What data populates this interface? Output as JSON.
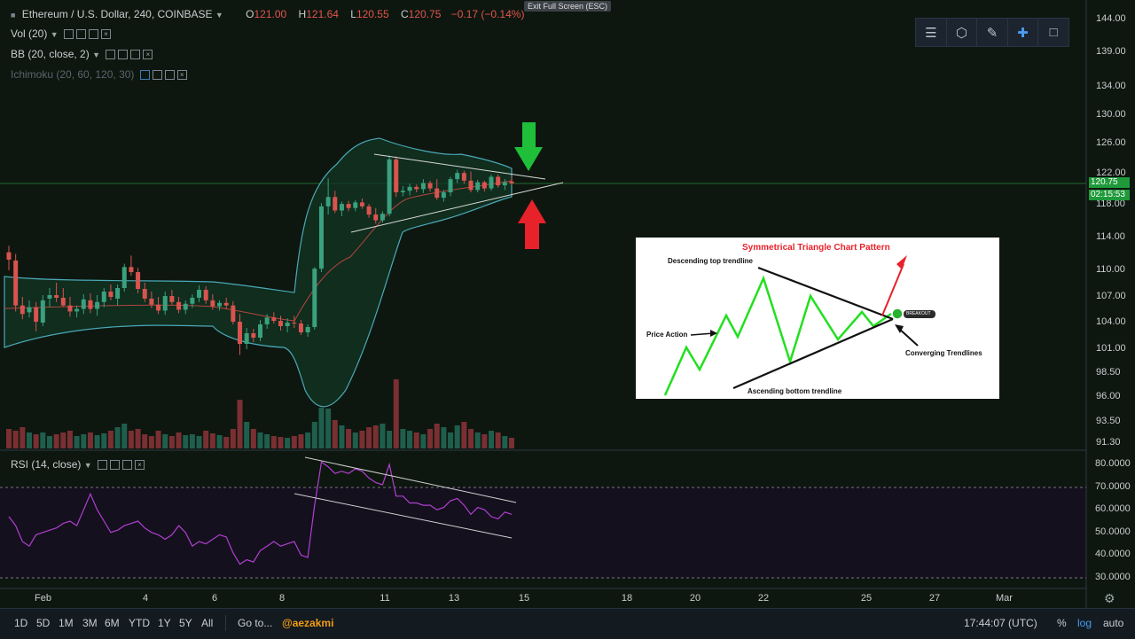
{
  "header": {
    "symbol": "Ethereum / U.S. Dollar, 240, COINBASE",
    "open_label": "O",
    "open": "121.00",
    "high_label": "H",
    "high": "121.64",
    "low_label": "L",
    "low": "120.55",
    "close_label": "C",
    "close": "120.75",
    "change": "−0.17 (−0.14%)",
    "exit_fullscreen": "Exit Full Screen (ESC)"
  },
  "indicators": {
    "vol": "Vol (20)",
    "bb": "BB (20, close, 2)",
    "ichimoku": "Ichimoku (20, 60, 120, 30)",
    "rsi": "RSI (14, close)"
  },
  "price_axis": [
    "144.00",
    "139.00",
    "134.00",
    "130.00",
    "126.00",
    "122.00",
    "118.00",
    "114.00",
    "110.00",
    "107.00",
    "104.00",
    "101.00",
    "98.50",
    "96.00",
    "93.50",
    "91.30"
  ],
  "price_tags": {
    "last": "120.75",
    "countdown": "02:15:53"
  },
  "rsi_axis": [
    "80.0000",
    "70.0000",
    "60.0000",
    "50.0000",
    "40.0000",
    "30.0000"
  ],
  "time_axis": [
    "Feb",
    "4",
    "6",
    "8",
    "11",
    "13",
    "15",
    "18",
    "20",
    "22",
    "25",
    "27",
    "Mar"
  ],
  "bottom": {
    "ranges": [
      "1D",
      "5D",
      "1M",
      "3M",
      "6M",
      "YTD",
      "1Y",
      "5Y",
      "All"
    ],
    "goto": "Go to...",
    "watermark": "@aezakmi",
    "clock": "17:44:07 (UTC)",
    "percent": "%",
    "log": "log",
    "auto": "auto"
  },
  "inset": {
    "title": "Symmetrical Triangle Chart Pattern",
    "top_trend": "Descending top trendline",
    "price_action": "Price Action",
    "bottom_trend": "Ascending bottom trendline",
    "converging": "Converging Trendlines",
    "breakout": "BREAKOUT"
  },
  "colors": {
    "bull": "#3aa07e",
    "bear": "#d9534f",
    "rsi": "#b13fd0",
    "bb": "#4aa9b8",
    "up_arrow": "#1fbf3a",
    "down_arrow": "#e8222a"
  },
  "chart_data": {
    "type": "candlestick",
    "candles": [
      [
        112.2,
        113.0,
        110.0,
        111.3
      ],
      [
        111.2,
        112.0,
        105.3,
        106.0
      ],
      [
        106.0,
        107.0,
        104.4,
        105.0
      ],
      [
        105.2,
        106.6,
        104.6,
        105.8
      ],
      [
        105.8,
        106.4,
        103.0,
        104.1
      ],
      [
        104.0,
        107.2,
        103.6,
        106.6
      ],
      [
        106.8,
        108.0,
        105.8,
        107.2
      ],
      [
        107.2,
        108.6,
        106.4,
        106.9
      ],
      [
        106.9,
        108.0,
        105.9,
        106.0
      ],
      [
        106.0,
        107.0,
        104.7,
        105.3
      ],
      [
        105.3,
        106.0,
        104.6,
        105.6
      ],
      [
        105.6,
        107.3,
        105.0,
        106.7
      ],
      [
        106.6,
        107.4,
        105.1,
        105.6
      ],
      [
        105.6,
        107.2,
        104.8,
        106.4
      ],
      [
        106.4,
        108.0,
        105.8,
        107.6
      ],
      [
        107.6,
        108.4,
        106.6,
        107.0
      ],
      [
        106.8,
        108.4,
        106.0,
        108.0
      ],
      [
        108.0,
        110.8,
        107.6,
        110.4
      ],
      [
        110.4,
        111.8,
        109.4,
        109.8
      ],
      [
        109.8,
        110.3,
        107.4,
        107.9
      ],
      [
        107.9,
        108.6,
        106.4,
        106.8
      ],
      [
        106.8,
        107.6,
        105.7,
        106.1
      ],
      [
        106.1,
        107.0,
        105.0,
        105.4
      ],
      [
        105.4,
        107.6,
        104.9,
        107.1
      ],
      [
        107.1,
        107.8,
        106.1,
        106.4
      ],
      [
        106.4,
        107.0,
        105.1,
        105.5
      ],
      [
        105.5,
        106.6,
        105.0,
        106.2
      ],
      [
        106.2,
        107.3,
        105.7,
        106.9
      ],
      [
        106.9,
        108.3,
        106.4,
        107.8
      ],
      [
        107.8,
        108.2,
        106.2,
        106.6
      ],
      [
        106.6,
        107.3,
        105.5,
        105.9
      ],
      [
        105.9,
        106.6,
        105.4,
        106.3
      ],
      [
        106.3,
        106.9,
        105.6,
        106.0
      ],
      [
        106.0,
        106.5,
        103.8,
        104.1
      ],
      [
        104.1,
        105.0,
        100.4,
        101.6
      ],
      [
        101.6,
        103.4,
        101.0,
        102.8
      ],
      [
        102.8,
        103.3,
        101.8,
        102.3
      ],
      [
        102.3,
        104.3,
        101.9,
        103.8
      ],
      [
        103.8,
        105.0,
        103.3,
        104.6
      ],
      [
        104.6,
        105.2,
        103.9,
        104.2
      ],
      [
        104.2,
        104.8,
        103.1,
        103.6
      ],
      [
        103.6,
        104.5,
        102.9,
        104.0
      ],
      [
        104.0,
        104.8,
        103.4,
        103.9
      ],
      [
        103.9,
        104.3,
        102.6,
        102.9
      ],
      [
        102.9,
        103.8,
        102.4,
        103.5
      ],
      [
        103.5,
        110.4,
        103.2,
        110.2
      ],
      [
        110.2,
        118.2,
        109.8,
        117.8
      ],
      [
        117.8,
        121.4,
        116.8,
        119.0
      ],
      [
        119.0,
        119.8,
        117.0,
        117.3
      ],
      [
        117.3,
        118.4,
        116.6,
        118.1
      ],
      [
        118.1,
        118.5,
        117.2,
        117.6
      ],
      [
        117.6,
        118.6,
        117.2,
        118.3
      ],
      [
        118.3,
        118.8,
        117.5,
        117.8
      ],
      [
        117.8,
        118.1,
        116.4,
        116.8
      ],
      [
        116.8,
        117.6,
        115.7,
        116.1
      ],
      [
        116.1,
        117.2,
        115.8,
        116.9
      ],
      [
        116.9,
        124.4,
        116.6,
        123.9
      ],
      [
        123.9,
        124.3,
        119.0,
        119.6
      ],
      [
        119.6,
        120.4,
        119.1,
        119.8
      ],
      [
        119.8,
        120.7,
        119.2,
        120.3
      ],
      [
        120.3,
        120.6,
        119.6,
        120.0
      ],
      [
        120.0,
        121.3,
        119.5,
        120.8
      ],
      [
        120.8,
        121.1,
        119.7,
        120.1
      ],
      [
        120.1,
        121.3,
        118.6,
        118.9
      ],
      [
        118.9,
        119.9,
        118.4,
        119.6
      ],
      [
        119.6,
        121.6,
        119.1,
        121.3
      ],
      [
        121.3,
        122.5,
        120.8,
        122.1
      ],
      [
        122.1,
        122.4,
        120.7,
        121.1
      ],
      [
        121.1,
        122.3,
        119.6,
        119.9
      ],
      [
        119.9,
        121.2,
        119.6,
        120.9
      ],
      [
        120.9,
        121.1,
        119.7,
        120.1
      ],
      [
        120.1,
        121.9,
        119.8,
        121.6
      ],
      [
        121.6,
        121.9,
        120.2,
        120.5
      ],
      [
        120.5,
        121.3,
        119.9,
        120.9
      ],
      [
        121.0,
        121.6,
        120.5,
        120.75
      ]
    ],
    "volume": [
      22,
      20,
      24,
      18,
      16,
      18,
      14,
      16,
      18,
      20,
      14,
      16,
      18,
      15,
      17,
      20,
      24,
      28,
      20,
      22,
      16,
      14,
      20,
      16,
      14,
      18,
      15,
      16,
      14,
      20,
      17,
      15,
      13,
      22,
      55,
      30,
      22,
      18,
      16,
      14,
      13,
      12,
      14,
      16,
      18,
      30,
      46,
      45,
      32,
      26,
      22,
      18,
      20,
      24,
      26,
      28,
      20,
      78,
      22,
      20,
      18,
      16,
      22,
      28,
      24,
      18,
      26,
      30,
      22,
      18,
      16,
      20,
      18,
      14,
      12
    ],
    "rsi": [
      57,
      53,
      46,
      44,
      49,
      50,
      51,
      52,
      54,
      55,
      53,
      60,
      67,
      60,
      55,
      50,
      51,
      53,
      54,
      55,
      52,
      50,
      49,
      47,
      49,
      53,
      50,
      44,
      46,
      45,
      47,
      49,
      48,
      41,
      36,
      38,
      37,
      42,
      44,
      46,
      44,
      45,
      46,
      40,
      39,
      62,
      81,
      79,
      76,
      77,
      76,
      78,
      77,
      74,
      72,
      71,
      80,
      66,
      66,
      63,
      63,
      62,
      62,
      60,
      61,
      64,
      65,
      62,
      58,
      61,
      60,
      57,
      56,
      59,
      58
    ],
    "ylim": [
      91.3,
      144.0
    ],
    "rsi_ylim": [
      30,
      80
    ]
  }
}
